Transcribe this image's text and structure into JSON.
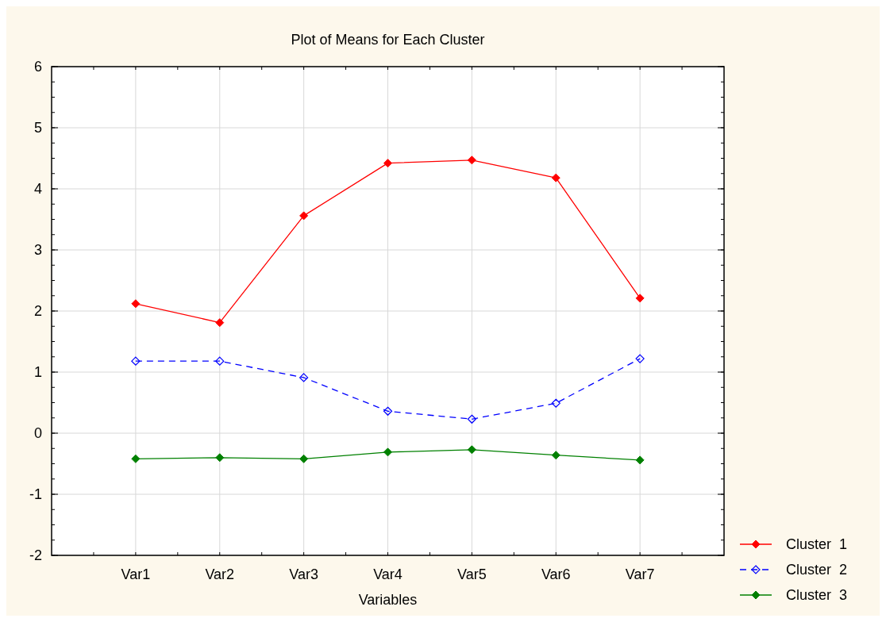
{
  "chart_data": {
    "type": "line",
    "title": "Plot of Means for Each Cluster",
    "xlabel": "Variables",
    "categories": [
      "Var1",
      "Var2",
      "Var3",
      "Var4",
      "Var5",
      "Var6",
      "Var7"
    ],
    "series": [
      {
        "name": "Cluster  1",
        "color": "#ff0000",
        "marker": "diamond",
        "line_style": "solid",
        "values": [
          2.12,
          1.81,
          3.56,
          4.42,
          4.47,
          4.18,
          2.21
        ]
      },
      {
        "name": "Cluster  2",
        "color": "#0000ff",
        "marker": "diamond-open",
        "line_style": "dashed",
        "values": [
          1.18,
          1.18,
          0.91,
          0.36,
          0.23,
          0.49,
          1.22
        ]
      },
      {
        "name": "Cluster  3",
        "color": "#008000",
        "marker": "diamond",
        "line_style": "solid",
        "values": [
          -0.42,
          -0.4,
          -0.42,
          -0.31,
          -0.27,
          -0.36,
          -0.44
        ]
      }
    ],
    "ylim": [
      -2,
      6
    ],
    "yticks": [
      -2,
      -1,
      0,
      1,
      2,
      3,
      4,
      5,
      6
    ],
    "grid": true,
    "legend": "bottom right"
  }
}
